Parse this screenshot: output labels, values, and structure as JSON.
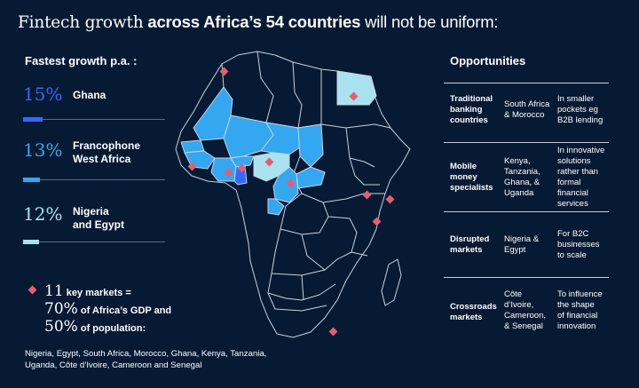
{
  "headline": {
    "part1": "Fintech",
    "part2": " growth",
    "part3": " across Africa’s 54 countries",
    "part4": " will not be uniform:"
  },
  "growth": {
    "heading": "Fastest growth p.a. :",
    "items": [
      {
        "pct": "15%",
        "value": 15,
        "region_lines": [
          "Ghana"
        ],
        "color": "#2f6bff"
      },
      {
        "pct": "13%",
        "value": 13,
        "region_lines": [
          "Francophone",
          "West Africa"
        ],
        "color": "#33a8f0"
      },
      {
        "pct": "12%",
        "value": 12,
        "region_lines": [
          "Nigeria",
          "and Egypt"
        ],
        "color": "#a9e3f0"
      }
    ]
  },
  "markets": {
    "line1_num": "11",
    "line1_text": " key markets =",
    "line2_num": "70%",
    "line2_text": " of Africa’s GDP and",
    "line3_num": "50%",
    "line3_text": " of population:",
    "list_line1": "Nigeria, Egypt, South Africa, Morocco, Ghana, Kenya, Tanzania,",
    "list_line2": "Uganda, Côte d’Ivoire, Cameroon and Senegal",
    "marker_color": "#e85c6e"
  },
  "opportunities": {
    "heading": "Opportunities",
    "rows": [
      {
        "category": [
          "Traditional",
          "banking",
          "countries"
        ],
        "markets": [
          "South Africa",
          "& Morocco"
        ],
        "opportunity": [
          "In smaller",
          "pockets eg",
          "B2B lending"
        ]
      },
      {
        "category": [
          "Mobile",
          "money",
          "specialists"
        ],
        "markets": [
          "Kenya,",
          "Tanzania,",
          "Ghana, &",
          "Uganda"
        ],
        "opportunity": [
          "In innovative",
          "solutions",
          "rather than",
          "formal",
          "financial",
          "services"
        ]
      },
      {
        "category": [
          "Disrupted",
          "markets"
        ],
        "markets": [
          "Nigeria &",
          "Egypt"
        ],
        "opportunity": [
          "For B2C",
          "businesses",
          "to scale"
        ]
      },
      {
        "category": [
          "Crossroads",
          "markets"
        ],
        "markets": [
          "Côte",
          "d’Ivoire,",
          "Cameroon,",
          "& Senegal"
        ],
        "opportunity": [
          "To influence",
          "the shape",
          "of financial",
          "innovation"
        ]
      }
    ]
  },
  "map": {
    "base_fill": "#061a33",
    "border_color": "#c9d2de",
    "francophone_fill": "#33a8f0",
    "ghana_fill": "#2f6bff",
    "nigeria_egypt_fill": "#a9e3f0",
    "key_markets": [
      "Morocco",
      "Senegal",
      "Ghana",
      "Côte d’Ivoire",
      "Nigeria",
      "Cameroon",
      "Egypt",
      "Uganda",
      "Kenya",
      "Tanzania",
      "South Africa"
    ]
  }
}
